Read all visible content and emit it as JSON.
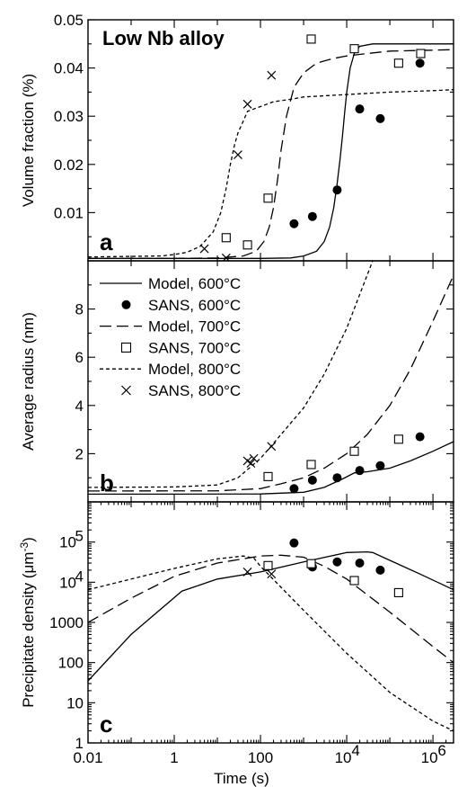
{
  "chart_data": [
    {
      "type": "scatter",
      "panel_label": "a",
      "title": "Low Nb alloy",
      "ylabel": "Volume fraction (%)",
      "xscale": "log",
      "xlim": [
        0.01,
        3000000
      ],
      "ylim": [
        0,
        0.05
      ],
      "yticks": [
        0.01,
        0.02,
        0.03,
        0.04,
        0.05
      ],
      "ytick_labels": [
        "0.01",
        "0.02",
        "0.03",
        "0.04",
        "0.05"
      ],
      "series": [
        {
          "name": "Model, 600°C",
          "kind": "line",
          "dash": "solid",
          "x": [
            0.01,
            1,
            100,
            500,
            1000,
            2000,
            3000,
            4000,
            5000,
            6000,
            7000,
            8000,
            9000,
            10000,
            12000,
            15000,
            20000,
            40000,
            100000,
            1000000,
            3000000
          ],
          "y": [
            0.0005,
            0.0005,
            0.0005,
            0.0006,
            0.001,
            0.002,
            0.004,
            0.007,
            0.011,
            0.016,
            0.021,
            0.026,
            0.031,
            0.035,
            0.04,
            0.043,
            0.0445,
            0.045,
            0.045,
            0.045,
            0.045
          ]
        },
        {
          "name": "SANS, 600°C",
          "kind": "points",
          "marker": "filled-circle",
          "x": [
            600,
            1600,
            6000,
            20000,
            60000,
            500000
          ],
          "y": [
            0.0077,
            0.0092,
            0.0147,
            0.0315,
            0.0295,
            0.041
          ]
        },
        {
          "name": "Model, 700°C",
          "kind": "line",
          "dash": "long-dash",
          "x": [
            0.01,
            1,
            10,
            40,
            80,
            120,
            160,
            200,
            250,
            300,
            400,
            600,
            1000,
            2000,
            5000,
            10000,
            30000,
            100000,
            1000000,
            3000000
          ],
          "y": [
            0.0005,
            0.0005,
            0.0006,
            0.001,
            0.002,
            0.004,
            0.007,
            0.011,
            0.017,
            0.023,
            0.03,
            0.036,
            0.039,
            0.041,
            0.042,
            0.0425,
            0.043,
            0.0435,
            0.0437,
            0.0438
          ]
        },
        {
          "name": "SANS, 700°C",
          "kind": "points",
          "marker": "open-square",
          "x": [
            16,
            50,
            150,
            1500,
            15000,
            160000,
            520000
          ],
          "y": [
            0.0048,
            0.0033,
            0.013,
            0.046,
            0.044,
            0.041,
            0.043
          ]
        },
        {
          "name": "Model, 800°C",
          "kind": "line",
          "dash": "short-dash",
          "x": [
            0.01,
            0.5,
            1,
            2,
            4,
            8,
            12,
            16,
            20,
            25,
            30,
            40,
            50,
            70,
            100,
            200,
            500,
            1000,
            10000,
            100000,
            1000000,
            3000000
          ],
          "y": [
            0.0008,
            0.001,
            0.0013,
            0.0018,
            0.003,
            0.006,
            0.01,
            0.015,
            0.02,
            0.024,
            0.0265,
            0.029,
            0.031,
            0.0315,
            0.032,
            0.033,
            0.0335,
            0.034,
            0.0345,
            0.035,
            0.0353,
            0.0355
          ]
        },
        {
          "name": "SANS, 800°C",
          "kind": "points",
          "marker": "cross",
          "x": [
            5,
            16,
            30,
            50,
            180
          ],
          "y": [
            0.0025,
            0.0006,
            0.022,
            0.0325,
            0.0385
          ]
        }
      ]
    },
    {
      "type": "scatter",
      "panel_label": "b",
      "ylabel": "Average radius (nm)",
      "xscale": "log",
      "xlim": [
        0.01,
        3000000
      ],
      "ylim": [
        0,
        10
      ],
      "yticks": [
        2,
        4,
        6,
        8
      ],
      "ytick_labels": [
        "2",
        "4",
        "6",
        "8"
      ],
      "legend_position": "top-left",
      "series": [
        {
          "name": "Model, 600°C",
          "kind": "line",
          "dash": "solid",
          "x": [
            0.01,
            1,
            100,
            1000,
            3000,
            8000,
            15000,
            30000,
            100000,
            300000,
            1000000,
            3000000
          ],
          "y": [
            0.32,
            0.32,
            0.33,
            0.4,
            0.6,
            0.95,
            1.2,
            1.25,
            1.4,
            1.7,
            2.1,
            2.5
          ]
        },
        {
          "name": "SANS, 600°C",
          "kind": "points",
          "marker": "filled-circle",
          "x": [
            600,
            1600,
            6000,
            20000,
            60000,
            500000
          ],
          "y": [
            0.55,
            0.9,
            1.0,
            1.3,
            1.5,
            2.7
          ]
        },
        {
          "name": "Model, 700°C",
          "kind": "line",
          "dash": "long-dash",
          "x": [
            0.01,
            10,
            100,
            300,
            1000,
            3000,
            10000,
            30000,
            100000,
            300000,
            1000000,
            3000000
          ],
          "y": [
            0.45,
            0.46,
            0.55,
            0.75,
            1.0,
            1.4,
            2.0,
            2.8,
            4.0,
            5.5,
            7.5,
            9.4
          ]
        },
        {
          "name": "SANS, 700°C",
          "kind": "points",
          "marker": "open-square",
          "x": [
            150,
            1500,
            15000,
            160000
          ],
          "y": [
            1.05,
            1.55,
            2.1,
            2.6
          ]
        },
        {
          "name": "Model, 800°C",
          "kind": "line",
          "dash": "short-dash",
          "x": [
            0.01,
            1,
            10,
            30,
            100,
            300,
            1000,
            3000,
            10000,
            20000,
            40000
          ],
          "y": [
            0.6,
            0.62,
            0.7,
            1.0,
            1.8,
            2.8,
            3.9,
            5.3,
            7.2,
            8.6,
            10.0
          ]
        },
        {
          "name": "SANS, 800°C",
          "kind": "points",
          "marker": "cross",
          "x": [
            50,
            60,
            70,
            180
          ],
          "y": [
            1.7,
            1.6,
            1.8,
            2.3
          ]
        }
      ]
    },
    {
      "type": "scatter",
      "panel_label": "c",
      "ylabel": "Precipitate density (μm⁻³)",
      "ylabel_base": "Precipitate density (μm",
      "ylabel_sup": "-3",
      "ylabel_tail": ")",
      "xlabel": "Time (s)",
      "xscale": "log",
      "yscale": "log",
      "xlim": [
        0.01,
        3000000
      ],
      "ylim": [
        1,
        1000000
      ],
      "yticks": [
        1,
        10,
        100,
        1000,
        10000,
        100000
      ],
      "ytick_labels": [
        {
          "base": "1"
        },
        {
          "base": "10"
        },
        {
          "base": "100"
        },
        {
          "base": "1000"
        },
        {
          "base": "10",
          "sup": "4"
        },
        {
          "base": "10",
          "sup": "5"
        }
      ],
      "xticks": [
        0.01,
        1,
        100,
        10000,
        1000000
      ],
      "xtick_labels": [
        {
          "base": "0.01"
        },
        {
          "base": "1"
        },
        {
          "base": "100"
        },
        {
          "base": "10",
          "sup": "4"
        },
        {
          "base": "10",
          "sup": "6"
        }
      ],
      "series": [
        {
          "name": "Model, 600°C",
          "kind": "line",
          "dash": "solid",
          "x": [
            0.01,
            0.1,
            1.5,
            10,
            100,
            1000,
            10000,
            30000,
            40000,
            100000,
            500000,
            3000000
          ],
          "y": [
            35,
            500,
            6000,
            12000,
            18000,
            32000,
            55000,
            57000,
            55000,
            35000,
            16000,
            6500
          ]
        },
        {
          "name": "SANS, 600°C",
          "kind": "points",
          "marker": "filled-circle",
          "x": [
            600,
            1600,
            6000,
            20000,
            60000
          ],
          "y": [
            95000,
            24000,
            32000,
            30000,
            20000
          ]
        },
        {
          "name": "Model, 700°C",
          "kind": "line",
          "dash": "long-dash",
          "x": [
            0.01,
            0.1,
            1,
            10,
            100,
            300,
            1000,
            3000,
            10000,
            100000,
            1000000,
            3000000
          ],
          "y": [
            1000,
            4000,
            14000,
            30000,
            45000,
            47000,
            42000,
            25000,
            12000,
            1800,
            250,
            100
          ]
        },
        {
          "name": "SANS, 700°C",
          "kind": "points",
          "marker": "open-square",
          "x": [
            150,
            1500,
            15000,
            160000
          ],
          "y": [
            26000,
            29000,
            11000,
            5500
          ]
        },
        {
          "name": "Model, 800°C",
          "kind": "line",
          "dash": "short-dash",
          "x": [
            0.01,
            0.1,
            1,
            10,
            40,
            70,
            100,
            1000,
            10000,
            100000,
            1000000,
            3000000
          ],
          "y": [
            6500,
            12000,
            22000,
            38000,
            45000,
            40000,
            25000,
            2000,
            170,
            18,
            3.5,
            2
          ]
        },
        {
          "name": "SANS, 800°C",
          "kind": "points",
          "marker": "cross",
          "x": [
            50,
            180
          ],
          "y": [
            18000,
            16000
          ]
        }
      ]
    }
  ],
  "legend_labels": [
    "Model, 600°C",
    "SANS, 600°C",
    "Model, 700°C",
    "SANS, 700°C",
    "Model, 800°C",
    "SANS, 800°C"
  ]
}
